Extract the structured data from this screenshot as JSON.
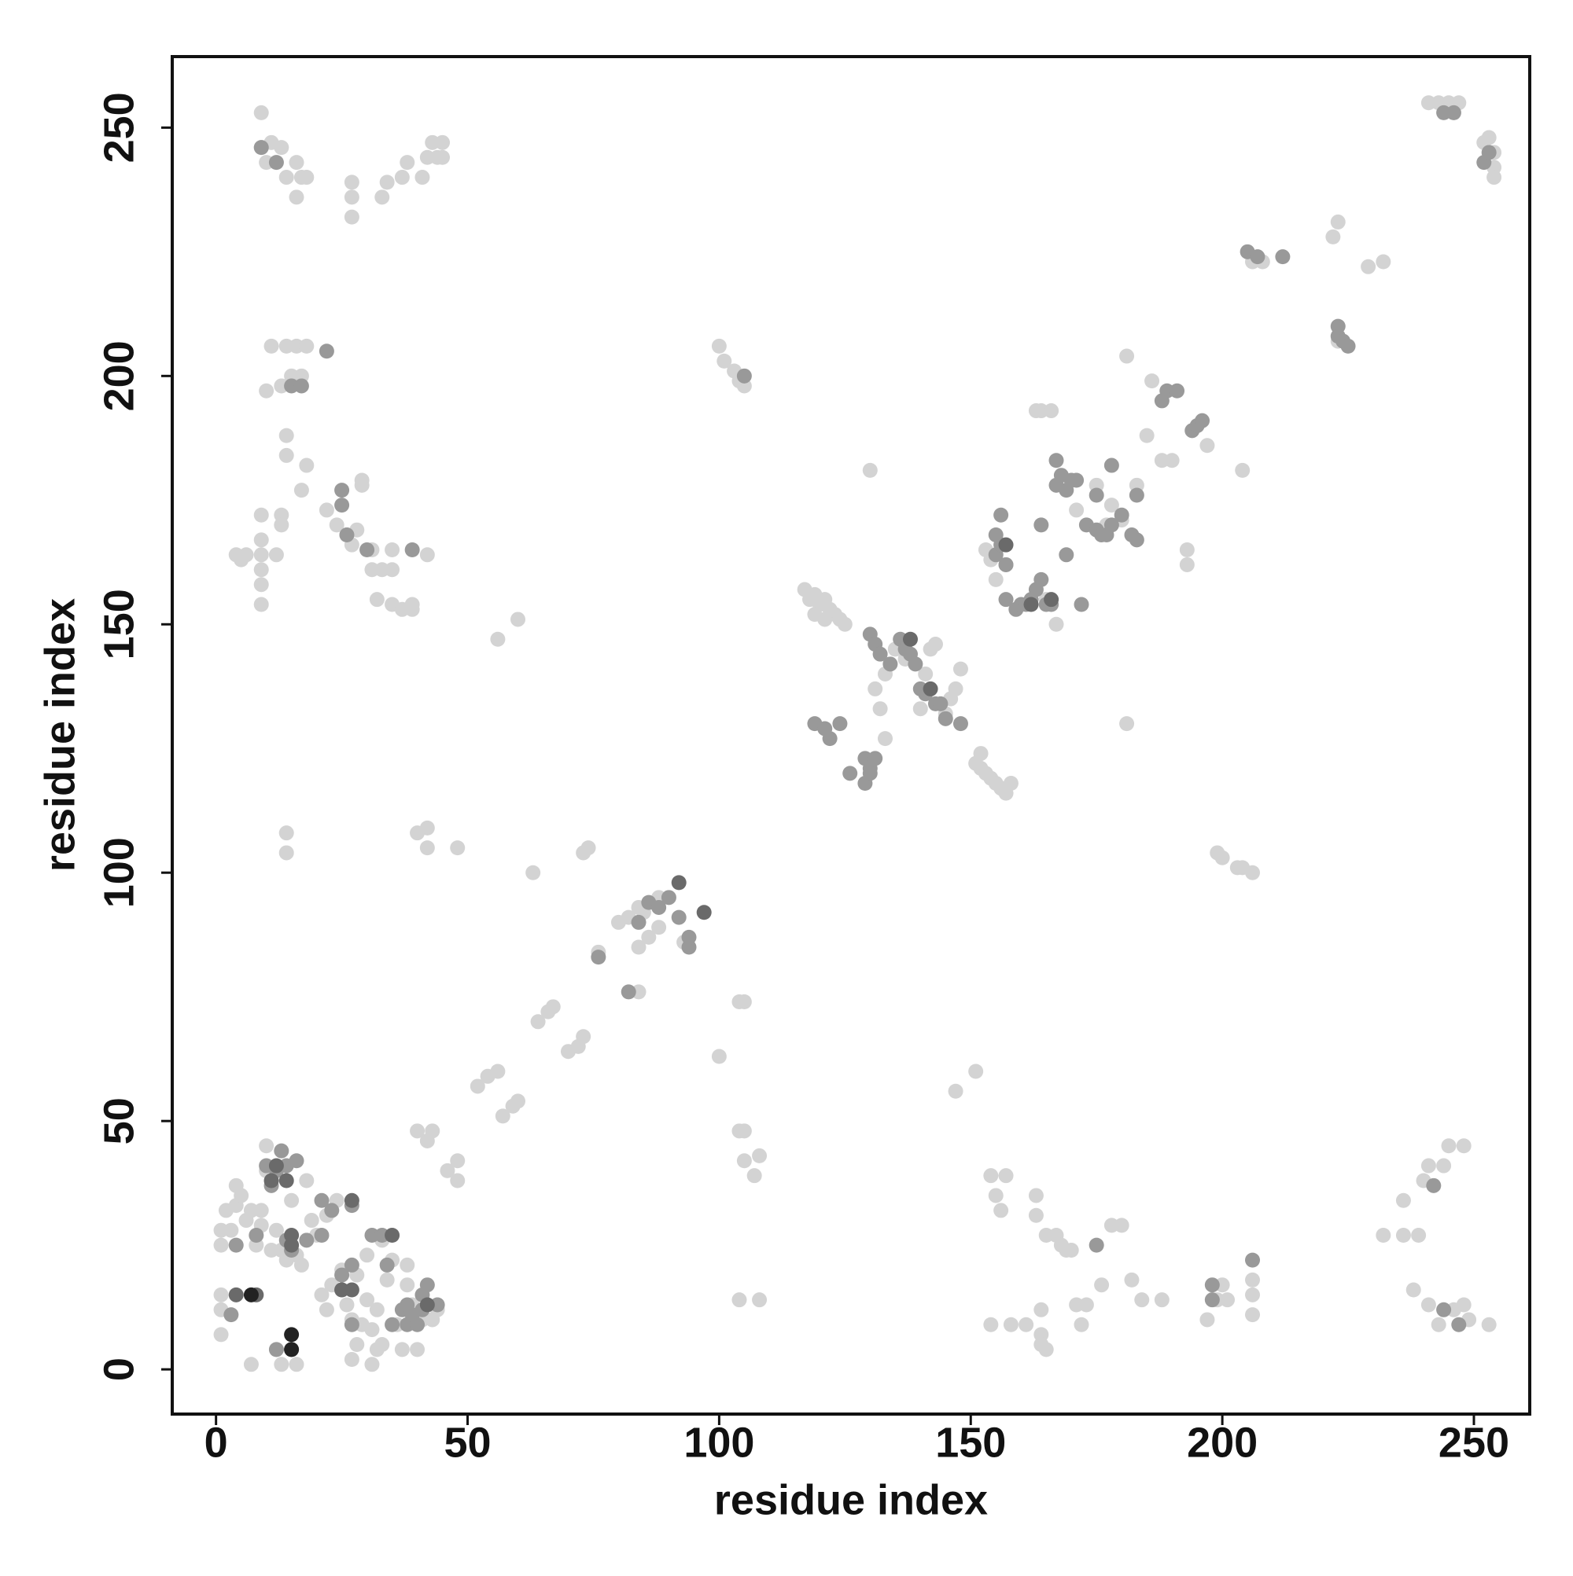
{
  "chart_data": {
    "type": "scatter",
    "x_label": "residue index",
    "y_label": "residue index",
    "xlim": [
      -8.7,
      261.1
    ],
    "ylim": [
      -9,
      264.3
    ],
    "xticks": [
      0,
      50,
      100,
      150,
      200,
      250
    ],
    "yticks": [
      0,
      50,
      100,
      150,
      200,
      250
    ],
    "series": [
      {
        "color": "#d3d3d3",
        "x": [
          9,
          9,
          10,
          11,
          13,
          14,
          16,
          16,
          17,
          18,
          27,
          27,
          27,
          33,
          34,
          37,
          38,
          41,
          42,
          44,
          45,
          45,
          43,
          11,
          14,
          16,
          18,
          10,
          13,
          15,
          17,
          14,
          14,
          18,
          17,
          9,
          13,
          13,
          4,
          5,
          6,
          9,
          12,
          9,
          9,
          9,
          9,
          22,
          24,
          26,
          27,
          28,
          29,
          29,
          31,
          31,
          33,
          35,
          35,
          32,
          35,
          37,
          39,
          39,
          42,
          14,
          14,
          40,
          42,
          42,
          48,
          56,
          60,
          63,
          73,
          74,
          100,
          100,
          101,
          103,
          104,
          105,
          52,
          54,
          56,
          57,
          59,
          60,
          64,
          66,
          67,
          70,
          72,
          73,
          76,
          80,
          82,
          84,
          85,
          88,
          84,
          86,
          88,
          93,
          84,
          104,
          105,
          104,
          105,
          105,
          107,
          108,
          104,
          108,
          1,
          1,
          1,
          1,
          1,
          2,
          3,
          4,
          4,
          5,
          6,
          7,
          8,
          9,
          9,
          10,
          10,
          11,
          12,
          13,
          14,
          15,
          16,
          17,
          18,
          19,
          20,
          21,
          22,
          22,
          23,
          24,
          25,
          26,
          27,
          27,
          28,
          28,
          29,
          30,
          30,
          31,
          31,
          32,
          32,
          33,
          33,
          34,
          35,
          36,
          37,
          38,
          38,
          39,
          40,
          41,
          43,
          44,
          40,
          42,
          43,
          46,
          48,
          48,
          7,
          12,
          13,
          16,
          117,
          118,
          119,
          120,
          121,
          122,
          123,
          124,
          125,
          119,
          121,
          151,
          152,
          153,
          154,
          155,
          156,
          157,
          158,
          152,
          132,
          133,
          131,
          133,
          135,
          137,
          140,
          141,
          142,
          143,
          145,
          146,
          147,
          148,
          130,
          181,
          147,
          151,
          155,
          157,
          153,
          154,
          163,
          164,
          166,
          165,
          167,
          171,
          175,
          177,
          178,
          180,
          183,
          185,
          188,
          190,
          193,
          193,
          181,
          186,
          197,
          204,
          222,
          223,
          223,
          229,
          232,
          206,
          208,
          199,
          200,
          203,
          204,
          206,
          241,
          243,
          245,
          247,
          246,
          253,
          254,
          254,
          254,
          252,
          154,
          155,
          156,
          157,
          154,
          158,
          161,
          163,
          163,
          164,
          164,
          164,
          165,
          165,
          167,
          168,
          169,
          170,
          171,
          172,
          173,
          176,
          178,
          180,
          182,
          184,
          188,
          197,
          199,
          200,
          201,
          206,
          206,
          206,
          232,
          236,
          236,
          238,
          239,
          240,
          241,
          241,
          243,
          244,
          245,
          246,
          248,
          248,
          249,
          253
        ],
        "values": [
          253,
          246,
          243,
          247,
          246,
          240,
          243,
          236,
          240,
          240,
          232,
          236,
          239,
          236,
          239,
          240,
          243,
          240,
          244,
          244,
          247,
          244,
          247,
          206,
          206,
          206,
          206,
          197,
          198,
          200,
          200,
          188,
          184,
          182,
          177,
          172,
          172,
          170,
          164,
          163,
          164,
          164,
          164,
          167,
          161,
          158,
          154,
          173,
          170,
          168,
          166,
          169,
          178,
          179,
          165,
          161,
          161,
          165,
          161,
          155,
          154,
          153,
          154,
          153,
          164,
          108,
          104,
          108,
          109,
          105,
          105,
          147,
          151,
          100,
          104,
          105,
          63,
          206,
          203,
          201,
          199,
          198,
          57,
          59,
          60,
          51,
          53,
          54,
          70,
          72,
          73,
          64,
          65,
          67,
          84,
          90,
          91,
          93,
          92,
          95,
          85,
          87,
          89,
          86,
          76,
          74,
          74,
          48,
          48,
          42,
          39,
          43,
          14,
          14,
          7,
          12,
          15,
          25,
          28,
          32,
          28,
          33,
          37,
          35,
          30,
          32,
          25,
          32,
          29,
          40,
          45,
          24,
          28,
          24,
          22,
          34,
          23,
          21,
          38,
          30,
          27,
          15,
          12,
          31,
          17,
          34,
          20,
          13,
          10,
          2,
          5,
          19,
          9,
          23,
          14,
          1,
          8,
          4,
          12,
          26,
          5,
          18,
          22,
          9,
          4,
          21,
          17,
          13,
          4,
          10,
          10,
          12,
          48,
          46,
          48,
          40,
          38,
          42,
          1,
          4,
          1,
          1,
          157,
          155,
          156,
          154,
          155,
          153,
          152,
          151,
          150,
          152,
          151,
          122,
          121,
          120,
          119,
          118,
          117,
          116,
          118,
          124,
          133,
          127,
          137,
          140,
          145,
          143,
          133,
          140,
          145,
          146,
          132,
          135,
          137,
          141,
          181,
          130,
          56,
          60,
          159,
          162,
          165,
          163,
          193,
          193,
          193,
          155,
          150,
          173,
          178,
          170,
          174,
          171,
          178,
          188,
          183,
          183,
          165,
          162,
          204,
          199,
          186,
          181,
          228,
          231,
          207,
          222,
          223,
          223,
          223,
          104,
          103,
          101,
          101,
          100,
          255,
          255,
          255,
          255,
          253,
          248,
          245,
          242,
          240,
          247,
          39,
          35,
          32,
          39,
          9,
          9,
          9,
          35,
          31,
          12,
          7,
          5,
          4,
          27,
          27,
          25,
          24,
          24,
          13,
          9,
          13,
          17,
          29,
          29,
          18,
          14,
          14,
          10,
          14,
          17,
          14,
          18,
          15,
          11,
          27,
          34,
          27,
          16,
          27,
          38,
          13,
          41,
          9,
          41,
          45,
          12,
          45,
          13,
          10,
          9
        ]
      },
      {
        "color": "#999999",
        "x": [
          9,
          12,
          15,
          17,
          25,
          25,
          26,
          30,
          39,
          90,
          92,
          94,
          94,
          76,
          82,
          84,
          86,
          88,
          105,
          119,
          121,
          122,
          124,
          130,
          131,
          132,
          134,
          136,
          137,
          138,
          139,
          140,
          141,
          143,
          144,
          145,
          148,
          129,
          130,
          131,
          129,
          130,
          126,
          155,
          155,
          156,
          156,
          157,
          157,
          159,
          160,
          161,
          162,
          163,
          164,
          165,
          166,
          167,
          167,
          168,
          169,
          170,
          171,
          172,
          173,
          175,
          176,
          177,
          178,
          180,
          182,
          183,
          188,
          189,
          191,
          194,
          195,
          196,
          198,
          198,
          205,
          207,
          212,
          223,
          223,
          224,
          225,
          175,
          164,
          169,
          183,
          178,
          22,
          10,
          12,
          11,
          13,
          14,
          16,
          21,
          21,
          18,
          23,
          25,
          25,
          27,
          27,
          27,
          31,
          33,
          34,
          37,
          38,
          38,
          39,
          40,
          41,
          41,
          42,
          44,
          35,
          3,
          4,
          8,
          12,
          15,
          14,
          15,
          206,
          242,
          244,
          247,
          246,
          244,
          252,
          253,
          175
        ],
        "values": [
          246,
          243,
          198,
          198,
          177,
          174,
          168,
          165,
          165,
          95,
          91,
          85,
          87,
          83,
          76,
          90,
          94,
          93,
          200,
          130,
          129,
          127,
          130,
          148,
          146,
          144,
          142,
          147,
          145,
          144,
          142,
          137,
          136,
          134,
          134,
          131,
          130,
          123,
          121,
          123,
          118,
          120,
          120,
          164,
          168,
          166,
          172,
          162,
          155,
          153,
          154,
          154,
          155,
          157,
          159,
          154,
          154,
          183,
          178,
          180,
          177,
          179,
          179,
          154,
          170,
          169,
          168,
          168,
          170,
          172,
          168,
          167,
          195,
          197,
          197,
          189,
          190,
          191,
          17,
          14,
          225,
          224,
          224,
          210,
          208,
          207,
          206,
          176,
          170,
          164,
          176,
          182,
          205,
          41,
          40,
          37,
          44,
          41,
          42,
          34,
          27,
          26,
          32,
          16,
          19,
          21,
          33,
          9,
          27,
          27,
          21,
          12,
          9,
          13,
          11,
          9,
          12,
          15,
          17,
          13,
          9,
          11,
          25,
          27,
          4,
          4,
          26,
          24,
          22,
          37,
          12,
          9,
          253,
          253,
          243,
          245,
          25
        ]
      },
      {
        "color": "#6a6a6a",
        "x": [
          8,
          4,
          15,
          15,
          12,
          14,
          11,
          27,
          27,
          25,
          35,
          42,
          92,
          97,
          138,
          142,
          157,
          162,
          166
        ],
        "values": [
          15,
          15,
          27,
          25,
          41,
          38,
          38,
          34,
          16,
          16,
          27,
          13,
          98,
          92,
          147,
          137,
          166,
          154,
          155
        ]
      },
      {
        "color": "#222222",
        "x": [
          7,
          15,
          15
        ],
        "values": [
          15,
          7,
          4
        ]
      }
    ]
  }
}
